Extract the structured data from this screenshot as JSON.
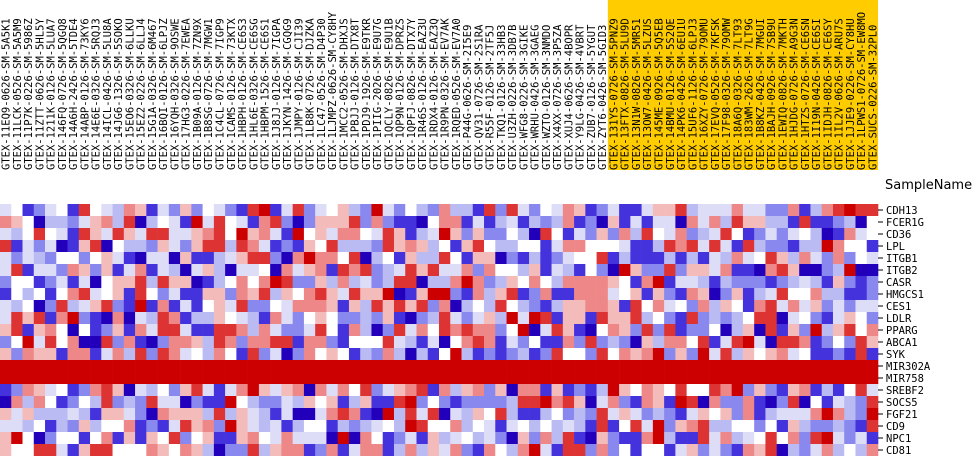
{
  "header": {
    "sample_name_label": "SampleName"
  },
  "chart_data": {
    "type": "heatmap",
    "colors": {
      "low": "#2200bb",
      "high": "#cc0000",
      "mid": "#ffffff",
      "highlight": "#ffcc00"
    },
    "columns": [
      "GTEX-11EQ9-0626-SM-5A5K1",
      "GTEX-11LCK-0526-SM-5A5M9",
      "GTEX-11P7K-0226-SM-5986Z",
      "GTEX-11ZTT-0626-SM-5HL5Y",
      "GTEX-1211K-0126-SM-5LUA7",
      "GTEX-146FQ-0726-SM-5QGQ8",
      "GTEX-14A6H-2426-SM-5TDE4",
      "GTEX-14ABP-0126-SM-73KY6",
      "GTEX-14E6E-0326-SM-5RQJ3",
      "GTEX-14ICL-0426-SM-5LU8A",
      "GTEX-14JG6-1326-SM-5SOKO",
      "GTEX-15EO6-0326-SM-6LLKU",
      "GTEX-15EZ2-0226-SM-6LLJ4",
      "GTEX-15G1A-0326-SM-6M467",
      "GTEX-16BQI-0126-SM-6LPJZ",
      "GTEX-16YQH-0326-SM-9OSWE",
      "GTEX-17HG3-0226-SM-7EWEA",
      "GTEX-1B09A-0126-SM-7ZN9X",
      "GTEX-1B8SG-0726-SM-7MGW1",
      "GTEX-1C4CL-0726-SM-7IGP9",
      "GTEX-1CAMS-0126-SM-73KTX",
      "GTEX-1HBPH-0126-SM-CE6S3",
      "GTEX-1HL6E-0326-SM-CE6SG",
      "GTEX-1HBPM-1526-SM-CE6S1",
      "GTEX-1J8JJ-0126-SM-7IGPA",
      "GTEX-1JKYN-1426-SM-CGQG9",
      "GTEX-1JMPY-0126-SM-CJI39",
      "GTEX-1LB8K-0726-SM-DJZKA",
      "GTEX-1LC47-0526-SM-D4P30",
      "GTEX-1LJMPZ-0626-SM-CY8HY",
      "GTEX-1MCC2-0526-SM-DHXJS",
      "GTEX-1PBJJ-0126-SM-DTX8T",
      "GTEX-1PDJ9-1926-SM-E9TKR",
      "GTEX-1PIIG-2026-SM-E9U7G",
      "GTEX-1QCLY-0826-SM-E9U1B",
      "GTEX-1QP9N-0126-SM-DPRZS",
      "GTEX-1QPFJ-0826-SM-DTX7Y",
      "GTEX-1R46S-0126-SM-EAZ3U",
      "GTEX-1RDX4-0126-SM-EAZ3Q",
      "GTEX-1R9PN-0326-SM-EV7AK",
      "GTEX-1RQED-0526-SM-EV7A0",
      "GTEX-P44G-0626-SM-2I5E9",
      "GTEX-QV31-0726-SM-2S1RA",
      "GTEX-R55F-0126-SM-2TF5J",
      "GTEX-TKQ1-0126-SM-33HB3",
      "GTEX-U3ZH-0226-SM-3DB7B",
      "GTEX-WFG8-0226-SM-3GIKE",
      "GTEX-WRHU-0426-SM-3GAEG",
      "GTEX-WZTO-0126-SM-3NMDO",
      "GTEX-X4XX-0726-SM-3P5ZA",
      "GTEX-XUJ4-0626-SM-4BOPR",
      "GTEX-Y9LG-0426-SM-4VBRT",
      "GTEX-ZUB7-0126-SM-5YGUT",
      "GTEX-ZYT6-0426-SM-5GID3",
      "GTEX-131YS-0726-SM-5PNZ9",
      "GTEX-13FTX-0826-SM-5LU9D",
      "GTEX-13N1W-0826-SM-5MR51",
      "GTEX-13OW7-0426-SM-5LZUS",
      "GTEX-145ME-0926-SM-5Q5EB",
      "GTEX-14BMU-0126-SM-5S2QE",
      "GTEX-14PK6-0426-SM-6EU1U",
      "GTEX-15UF6-1126-SM-6LPJ3",
      "GTEX-16XZY-0726-SM-79OMU",
      "GTEX-17EVQ-0526-SM-7KFSK",
      "GTEX-17F98-0326-SM-79OMW",
      "GTEX-18A6Q-0326-SM-7LT93",
      "GTEX-183WM-2626-SM-7LT9G",
      "GTEX-1B8KZ-0426-SM-7MGUI",
      "GTEX-1BAJH-0926-SM-7SB9U",
      "GTEX-1EWIQ-0826-SM-7MKTH",
      "GTEX-1HJDG-0726-SM-A9G3N",
      "GTEX-1HTZS-0726-SM-CE6SN",
      "GTEX-1I19N-0426-SM-CE6SI",
      "GTEX-1IDJH-0826-SM-CE6SY",
      "GTEX-1IL2V-0626-SM-ARU7S",
      "GTEX-1JJE9-0226-SM-CY8HU",
      "GTEX-1LPWS1-0726-SM-EW8MO",
      "GTEX-SUCS-0226-SM-32PL0"
    ],
    "rows": [
      "CDH13",
      "FCER1G",
      "CD36",
      "LPL",
      "ITGB1",
      "ITGB2",
      "CASR",
      "HMGCS1",
      "CES1",
      "LDLR",
      "PPARG",
      "ABCA1",
      "SYK",
      "MIR302A",
      "MIR758",
      "SREBF2",
      "SOCS5",
      "FGF21",
      "CD9",
      "NPC1",
      "CD81"
    ]
  }
}
